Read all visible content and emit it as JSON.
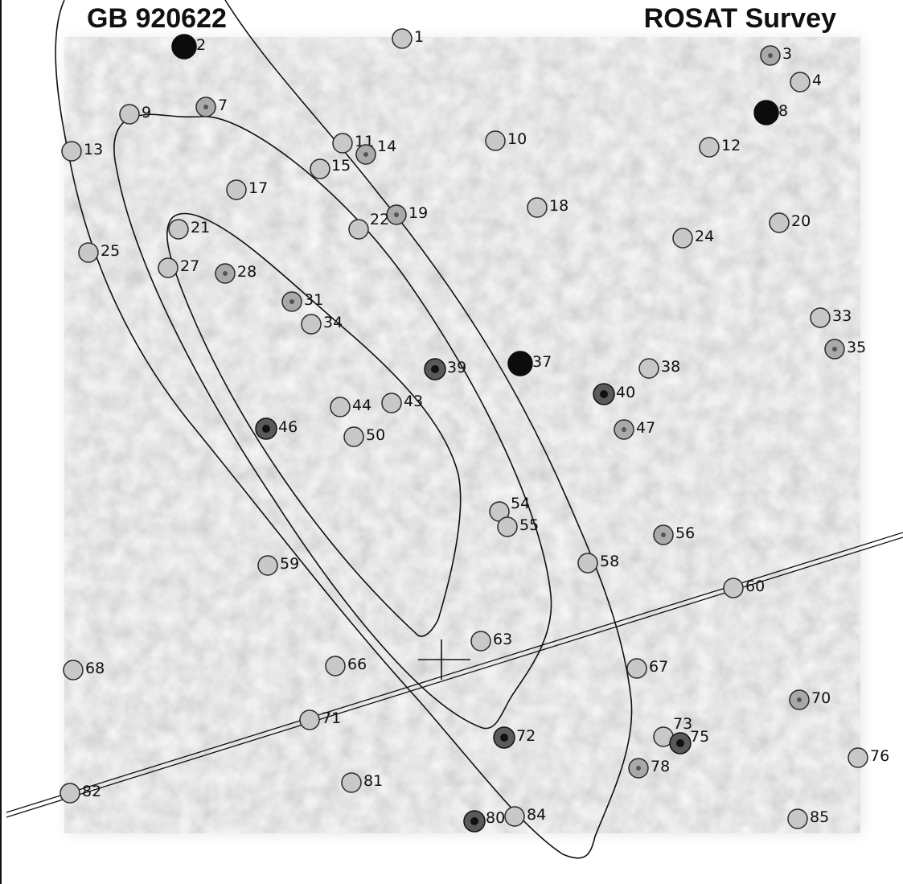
{
  "title_left": "GB 920622",
  "title_right": "ROSAT Survey",
  "sources": [
    {
      "id": "1",
      "label": "1",
      "shade": "faint"
    },
    {
      "id": "2",
      "label": "2",
      "shade": "solid"
    },
    {
      "id": "3",
      "label": "3",
      "shade": "medium"
    },
    {
      "id": "4",
      "label": "4",
      "shade": "faint"
    },
    {
      "id": "7",
      "label": "7",
      "shade": "medium"
    },
    {
      "id": "8",
      "label": "8",
      "shade": "solid"
    },
    {
      "id": "9",
      "label": "9",
      "shade": "faint"
    },
    {
      "id": "10",
      "label": "10",
      "shade": "faint"
    },
    {
      "id": "11",
      "label": "11",
      "shade": "faint"
    },
    {
      "id": "12",
      "label": "12",
      "shade": "faint"
    },
    {
      "id": "13",
      "label": "13",
      "shade": "faint"
    },
    {
      "id": "14",
      "label": "14",
      "shade": "medium"
    },
    {
      "id": "15",
      "label": "15",
      "shade": "faint"
    },
    {
      "id": "17",
      "label": "17",
      "shade": "faint"
    },
    {
      "id": "18",
      "label": "18",
      "shade": "faint"
    },
    {
      "id": "19",
      "label": "19",
      "shade": "medium"
    },
    {
      "id": "20",
      "label": "20",
      "shade": "faint"
    },
    {
      "id": "21",
      "label": "21",
      "shade": "faint"
    },
    {
      "id": "22",
      "label": "22",
      "shade": "faint"
    },
    {
      "id": "24",
      "label": "24",
      "shade": "faint"
    },
    {
      "id": "25",
      "label": "25",
      "shade": "faint"
    },
    {
      "id": "27",
      "label": "27",
      "shade": "faint"
    },
    {
      "id": "28",
      "label": "28",
      "shade": "medium"
    },
    {
      "id": "31",
      "label": "31",
      "shade": "medium"
    },
    {
      "id": "33",
      "label": "33",
      "shade": "faint"
    },
    {
      "id": "34",
      "label": "34",
      "shade": "faint"
    },
    {
      "id": "35",
      "label": "35",
      "shade": "medium"
    },
    {
      "id": "37",
      "label": "37",
      "shade": "solid"
    },
    {
      "id": "38",
      "label": "38",
      "shade": "faint"
    },
    {
      "id": "39",
      "label": "39",
      "shade": "dark"
    },
    {
      "id": "40",
      "label": "40",
      "shade": "dark"
    },
    {
      "id": "43",
      "label": "43",
      "shade": "faint"
    },
    {
      "id": "44",
      "label": "44",
      "shade": "faint"
    },
    {
      "id": "46",
      "label": "46",
      "shade": "dark"
    },
    {
      "id": "47",
      "label": "47",
      "shade": "medium"
    },
    {
      "id": "50",
      "label": "50",
      "shade": "faint"
    },
    {
      "id": "54",
      "label": "54",
      "shade": "faint"
    },
    {
      "id": "55",
      "label": "55",
      "shade": "faint"
    },
    {
      "id": "56",
      "label": "56",
      "shade": "medium"
    },
    {
      "id": "58",
      "label": "58",
      "shade": "faint"
    },
    {
      "id": "59",
      "label": "59",
      "shade": "faint"
    },
    {
      "id": "60",
      "label": "60",
      "shade": "faint"
    },
    {
      "id": "63",
      "label": "63",
      "shade": "faint"
    },
    {
      "id": "66",
      "label": "66",
      "shade": "faint"
    },
    {
      "id": "67",
      "label": "67",
      "shade": "faint"
    },
    {
      "id": "68",
      "label": "68",
      "shade": "faint"
    },
    {
      "id": "70",
      "label": "70",
      "shade": "medium"
    },
    {
      "id": "71",
      "label": "71",
      "shade": "faint"
    },
    {
      "id": "72",
      "label": "72",
      "shade": "dark"
    },
    {
      "id": "73",
      "label": "73",
      "shade": "faint"
    },
    {
      "id": "75",
      "label": "75",
      "shade": "dark"
    },
    {
      "id": "76",
      "label": "76",
      "shade": "faint"
    },
    {
      "id": "78",
      "label": "78",
      "shade": "medium"
    },
    {
      "id": "80",
      "label": "80",
      "shade": "dark"
    },
    {
      "id": "81",
      "label": "81",
      "shade": "faint"
    },
    {
      "id": "82",
      "label": "82",
      "shade": "faint"
    },
    {
      "id": "84",
      "label": "84",
      "shade": "faint"
    },
    {
      "id": "85",
      "label": "85",
      "shade": "faint"
    }
  ],
  "colors": {
    "background": "#ffffff",
    "sky": "#dcdcdc",
    "ink": "#111111",
    "source_faint": "#c8c8c8",
    "source_medium": "#a9a9a9",
    "source_dark": "#3a3a3a",
    "source_solid": "#0c0c0c"
  }
}
